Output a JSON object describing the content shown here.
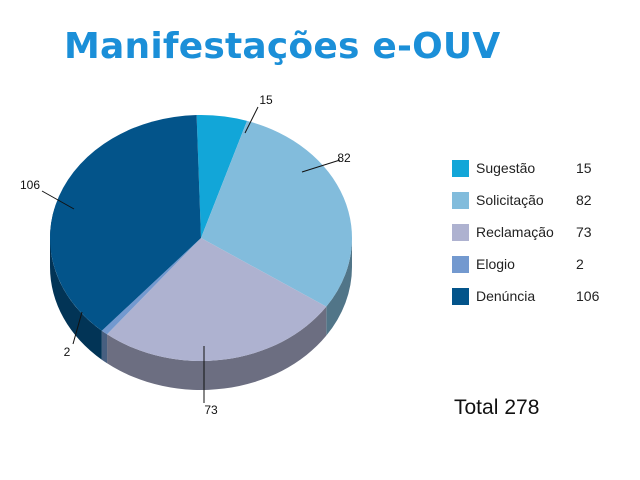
{
  "title": "Manifestações e-OUV",
  "chart_data": {
    "type": "pie",
    "categories": [
      "Sugestão",
      "Solicitação",
      "Reclamação",
      "Elogio",
      "Denúncia"
    ],
    "values": [
      15,
      82,
      73,
      2,
      106
    ],
    "colors": [
      "#12a6d8",
      "#82bcdc",
      "#aeb2d0",
      "#7399cf",
      "#03548a"
    ],
    "data_labels": [
      "15",
      "82",
      "73",
      "2",
      "106"
    ],
    "style": "3d-pie",
    "legend_position": "right"
  },
  "legend": [
    {
      "label": "Sugestão",
      "value": "15",
      "color": "#12a6d8"
    },
    {
      "label": "Solicitação",
      "value": "82",
      "color": "#82bcdc"
    },
    {
      "label": "Reclamação",
      "value": "73",
      "color": "#aeb2d0"
    },
    {
      "label": "Elogio",
      "value": "2",
      "color": "#7399cf"
    },
    {
      "label": "Denúncia",
      "value": "106",
      "color": "#03548a"
    }
  ],
  "total": {
    "label": "Total",
    "value": "278"
  }
}
